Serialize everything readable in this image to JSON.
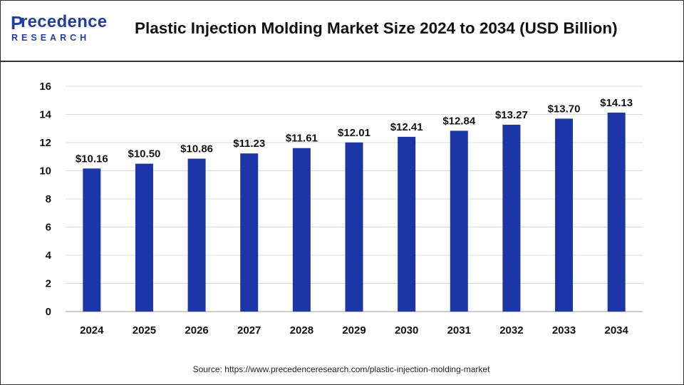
{
  "logo": {
    "p": "P",
    "word": "recedence",
    "sub": "RESEARCH"
  },
  "header": {
    "title": "Plastic Injection Molding Market Size 2024 to 2034 (USD Billion)"
  },
  "footer": {
    "source": "Source: https://www.precedenceresearch.com/plastic-injection-molding-market"
  },
  "chart_data": {
    "type": "bar",
    "categories": [
      "2024",
      "2025",
      "2026",
      "2027",
      "2028",
      "2029",
      "2030",
      "2031",
      "2032",
      "2033",
      "2034"
    ],
    "values": [
      10.16,
      10.5,
      10.86,
      11.23,
      11.61,
      12.01,
      12.41,
      12.84,
      13.27,
      13.7,
      14.13
    ],
    "data_labels": [
      "$10.16",
      "$10.50",
      "$10.86",
      "$11.23",
      "$11.61",
      "$12.01",
      "$12.41",
      "$12.84",
      "$13.27",
      "$13.70",
      "$14.13"
    ],
    "yticks": [
      "0",
      "2",
      "4",
      "6",
      "8",
      "10",
      "12",
      "14",
      "16"
    ],
    "ylim": [
      0,
      16
    ],
    "grid": true,
    "bar_color": "#1c36a8",
    "grid_color": "#d9d9d9"
  }
}
